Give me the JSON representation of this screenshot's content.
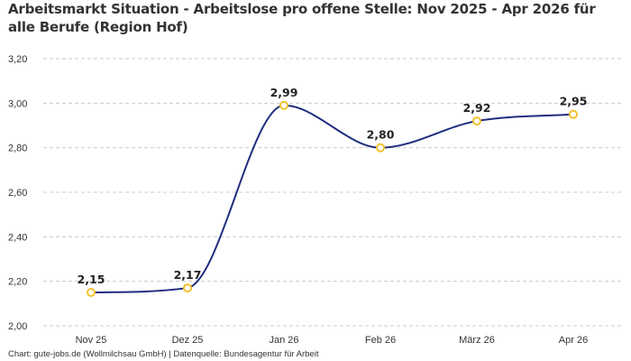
{
  "title": "Arbeitsmarkt Situation - Arbeitslose pro offene Stelle: Nov 2025 - Apr 2026 für alle Berufe (Region Hof)",
  "footer": "Chart: gute-jobs.de (Wollmilchsau GmbH) | Datenquelle: Bundesagentur für Arbeit",
  "colors": {
    "line": "#1f2d7e",
    "marker_stroke": "#f2c12e",
    "marker_fill": "#ffffff",
    "grid": "#cccccc"
  },
  "chart_data": {
    "type": "line",
    "title": "Arbeitsmarkt Situation - Arbeitslose pro offene Stelle: Nov 2025 - Apr 2026 für alle Berufe (Region Hof)",
    "categories": [
      "Nov 25",
      "Dez 25",
      "Jan 26",
      "Feb 26",
      "März 26",
      "Apr 26"
    ],
    "values": [
      2.15,
      2.17,
      2.99,
      2.8,
      2.92,
      2.95
    ],
    "data_labels": [
      "2,15",
      "2,17",
      "2,99",
      "2,80",
      "2,92",
      "2,95"
    ],
    "y_ticks": [
      "2,00",
      "2,20",
      "2,40",
      "2,60",
      "2,80",
      "3,00",
      "3,20"
    ],
    "y_tick_values": [
      2.0,
      2.2,
      2.4,
      2.6,
      2.8,
      3.0,
      3.2
    ],
    "ylim": [
      2.0,
      3.2
    ],
    "xlabel": "",
    "ylabel": "",
    "grid": true
  }
}
